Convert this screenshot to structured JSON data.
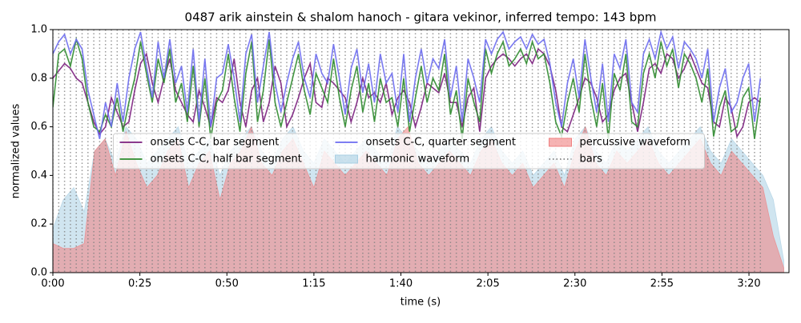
{
  "chart_data": {
    "type": "line",
    "title": "0487 arik ainstein & shalom hanoch - gitara vekinor, inferred tempo: 143 bpm",
    "xlabel": "time (s)",
    "ylabel": "normalized values",
    "xlim": [
      0,
      211.5
    ],
    "ylim": [
      0,
      1
    ],
    "xticks": [
      {
        "value": 0,
        "label": "0:00"
      },
      {
        "value": 25,
        "label": "0:25"
      },
      {
        "value": 50,
        "label": "0:50"
      },
      {
        "value": 75,
        "label": "1:15"
      },
      {
        "value": 100,
        "label": "1:40"
      },
      {
        "value": 125,
        "label": "2:05"
      },
      {
        "value": 150,
        "label": "2:30"
      },
      {
        "value": 175,
        "label": "2:55"
      },
      {
        "value": 200,
        "label": "3:20"
      }
    ],
    "yticks": [
      {
        "value": 0,
        "label": "0.0"
      },
      {
        "value": 0.2,
        "label": "0.2"
      },
      {
        "value": 0.4,
        "label": "0.4"
      },
      {
        "value": 0.6,
        "label": "0.6"
      },
      {
        "value": 0.8,
        "label": "0.8"
      },
      {
        "value": 1,
        "label": "1.0"
      }
    ],
    "legend": "center",
    "x": [
      0,
      1.68,
      3.36,
      5.04,
      6.72,
      8.4,
      10.08,
      11.76,
      13.44,
      15.12,
      16.8,
      18.48,
      20.16,
      21.84,
      23.52,
      25.2,
      26.88,
      28.56,
      30.24,
      31.92,
      33.6,
      35.28,
      36.96,
      38.64,
      40.32,
      42,
      43.68,
      45.36,
      47.04,
      48.72,
      50.4,
      52.08,
      53.76,
      55.44,
      57.12,
      58.8,
      60.48,
      62.16,
      63.84,
      65.52,
      67.2,
      68.88,
      70.56,
      72.24,
      73.92,
      75.6,
      77.28,
      78.96,
      80.64,
      82.32,
      84,
      85.68,
      87.36,
      89.04,
      90.72,
      92.4,
      94.08,
      95.76,
      97.44,
      99.12,
      100.8,
      102.48,
      104.16,
      105.84,
      107.52,
      109.2,
      110.88,
      112.56,
      114.24,
      115.92,
      117.6,
      119.28,
      120.96,
      122.64,
      124.32,
      126,
      127.68,
      129.36,
      131.04,
      132.72,
      134.4,
      136.08,
      137.76,
      139.44,
      141.12,
      142.8,
      144.48,
      146.16,
      147.84,
      149.52,
      151.2,
      152.88,
      154.56,
      156.24,
      157.92,
      159.6,
      161.28,
      162.96,
      164.64,
      166.32,
      168,
      169.68,
      171.36,
      173.04,
      174.72,
      176.4,
      178.08,
      179.76,
      181.44,
      183.12,
      184.8,
      186.48,
      188.16,
      189.84,
      191.52,
      193.2,
      194.88,
      196.56,
      198.24,
      199.92,
      201.6,
      203.28
    ],
    "series": [
      {
        "name": "onsets C-C, bar segment",
        "color": "#7b1f7e",
        "style": "line",
        "values": [
          0.8,
          0.83,
          0.86,
          0.84,
          0.8,
          0.78,
          0.7,
          0.62,
          0.57,
          0.6,
          0.72,
          0.66,
          0.6,
          0.62,
          0.75,
          0.86,
          0.9,
          0.78,
          0.7,
          0.8,
          0.88,
          0.75,
          0.7,
          0.65,
          0.62,
          0.75,
          0.68,
          0.6,
          0.72,
          0.7,
          0.75,
          0.88,
          0.7,
          0.6,
          0.75,
          0.8,
          0.62,
          0.7,
          0.85,
          0.78,
          0.6,
          0.65,
          0.72,
          0.8,
          0.86,
          0.7,
          0.68,
          0.8,
          0.78,
          0.75,
          0.72,
          0.62,
          0.7,
          0.8,
          0.72,
          0.74,
          0.7,
          0.78,
          0.65,
          0.72,
          0.75,
          0.7,
          0.6,
          0.68,
          0.78,
          0.76,
          0.74,
          0.82,
          0.7,
          0.7,
          0.6,
          0.72,
          0.76,
          0.58,
          0.8,
          0.85,
          0.88,
          0.9,
          0.88,
          0.85,
          0.88,
          0.9,
          0.86,
          0.92,
          0.9,
          0.85,
          0.75,
          0.6,
          0.58,
          0.65,
          0.72,
          0.8,
          0.78,
          0.72,
          0.62,
          0.65,
          0.75,
          0.8,
          0.82,
          0.7,
          0.58,
          0.7,
          0.84,
          0.86,
          0.82,
          0.9,
          0.88,
          0.8,
          0.84,
          0.9,
          0.84,
          0.78,
          0.76,
          0.62,
          0.6,
          0.72,
          0.68,
          0.56,
          0.6,
          0.7,
          0.72,
          0.7
        ]
      },
      {
        "name": "onsets C-C, half bar segment",
        "color": "#2e8b2e",
        "style": "line",
        "values": [
          0.68,
          0.9,
          0.92,
          0.85,
          0.96,
          0.88,
          0.7,
          0.6,
          0.58,
          0.65,
          0.6,
          0.72,
          0.58,
          0.7,
          0.8,
          0.95,
          0.82,
          0.7,
          0.88,
          0.78,
          0.92,
          0.7,
          0.78,
          0.62,
          0.85,
          0.6,
          0.8,
          0.55,
          0.7,
          0.75,
          0.9,
          0.72,
          0.58,
          0.82,
          0.95,
          0.62,
          0.75,
          0.96,
          0.7,
          0.6,
          0.7,
          0.8,
          0.9,
          0.75,
          0.65,
          0.82,
          0.76,
          0.7,
          0.88,
          0.72,
          0.6,
          0.75,
          0.85,
          0.66,
          0.78,
          0.62,
          0.8,
          0.7,
          0.72,
          0.6,
          0.8,
          0.58,
          0.72,
          0.85,
          0.7,
          0.8,
          0.75,
          0.9,
          0.65,
          0.75,
          0.55,
          0.8,
          0.7,
          0.62,
          0.92,
          0.82,
          0.9,
          0.95,
          0.85,
          0.88,
          0.92,
          0.86,
          0.95,
          0.88,
          0.9,
          0.78,
          0.62,
          0.56,
          0.7,
          0.8,
          0.66,
          0.9,
          0.72,
          0.6,
          0.78,
          0.55,
          0.82,
          0.75,
          0.9,
          0.62,
          0.6,
          0.82,
          0.9,
          0.8,
          0.95,
          0.85,
          0.92,
          0.76,
          0.9,
          0.86,
          0.8,
          0.7,
          0.84,
          0.56,
          0.68,
          0.75,
          0.58,
          0.6,
          0.72,
          0.76,
          0.55,
          0.72
        ]
      },
      {
        "name": "onsets C-C, quarter segment",
        "color": "#6b6bf0",
        "style": "line",
        "values": [
          0.9,
          0.95,
          0.98,
          0.9,
          0.96,
          0.92,
          0.75,
          0.65,
          0.55,
          0.7,
          0.6,
          0.78,
          0.62,
          0.8,
          0.92,
          0.99,
          0.85,
          0.72,
          0.95,
          0.8,
          0.96,
          0.78,
          0.85,
          0.66,
          0.92,
          0.62,
          0.88,
          0.6,
          0.8,
          0.82,
          0.94,
          0.8,
          0.62,
          0.9,
          0.98,
          0.7,
          0.85,
          0.99,
          0.78,
          0.66,
          0.78,
          0.88,
          0.95,
          0.8,
          0.72,
          0.9,
          0.82,
          0.78,
          0.94,
          0.8,
          0.65,
          0.84,
          0.92,
          0.74,
          0.86,
          0.7,
          0.9,
          0.78,
          0.82,
          0.66,
          0.9,
          0.62,
          0.8,
          0.92,
          0.78,
          0.88,
          0.84,
          0.96,
          0.72,
          0.85,
          0.62,
          0.88,
          0.8,
          0.7,
          0.96,
          0.9,
          0.96,
          0.99,
          0.92,
          0.95,
          0.97,
          0.92,
          0.98,
          0.94,
          0.96,
          0.86,
          0.7,
          0.6,
          0.78,
          0.88,
          0.72,
          0.96,
          0.8,
          0.66,
          0.86,
          0.62,
          0.9,
          0.84,
          0.96,
          0.7,
          0.66,
          0.9,
          0.96,
          0.88,
          0.99,
          0.92,
          0.97,
          0.84,
          0.95,
          0.92,
          0.88,
          0.8,
          0.92,
          0.62,
          0.76,
          0.84,
          0.66,
          0.7,
          0.8,
          0.86,
          0.62,
          0.8
        ]
      },
      {
        "name": "harmonic waveform",
        "color": "#a9cfe3",
        "style": "area",
        "x": [
          0,
          3,
          6,
          9,
          12,
          15,
          18,
          21,
          24,
          27,
          30,
          33,
          36,
          39,
          42,
          45,
          48,
          51,
          54,
          57,
          60,
          63,
          66,
          69,
          72,
          75,
          78,
          81,
          84,
          87,
          90,
          93,
          96,
          99,
          102,
          105,
          108,
          111,
          114,
          117,
          120,
          123,
          126,
          129,
          132,
          135,
          138,
          141,
          144,
          147,
          150,
          153,
          156,
          159,
          162,
          165,
          168,
          171,
          174,
          177,
          180,
          183,
          186,
          189,
          192,
          195,
          198,
          201,
          204,
          207,
          210
        ],
        "values": [
          0.18,
          0.3,
          0.35,
          0.25,
          0.5,
          0.55,
          0.45,
          0.6,
          0.55,
          0.45,
          0.5,
          0.55,
          0.6,
          0.45,
          0.5,
          0.55,
          0.4,
          0.5,
          0.55,
          0.6,
          0.5,
          0.45,
          0.55,
          0.6,
          0.5,
          0.45,
          0.55,
          0.5,
          0.45,
          0.5,
          0.55,
          0.5,
          0.45,
          0.6,
          0.55,
          0.5,
          0.45,
          0.5,
          0.55,
          0.5,
          0.45,
          0.55,
          0.6,
          0.5,
          0.45,
          0.5,
          0.4,
          0.45,
          0.5,
          0.4,
          0.55,
          0.6,
          0.5,
          0.45,
          0.55,
          0.5,
          0.55,
          0.6,
          0.5,
          0.45,
          0.5,
          0.55,
          0.6,
          0.5,
          0.45,
          0.55,
          0.5,
          0.45,
          0.4,
          0.3,
          0.05
        ]
      },
      {
        "name": "percussive waveform",
        "color": "#f08080",
        "style": "area",
        "x": [
          0,
          3,
          6,
          9,
          12,
          15,
          18,
          21,
          24,
          27,
          30,
          33,
          36,
          39,
          42,
          45,
          48,
          51,
          54,
          57,
          60,
          63,
          66,
          69,
          72,
          75,
          78,
          81,
          84,
          87,
          90,
          93,
          96,
          99,
          102,
          105,
          108,
          111,
          114,
          117,
          120,
          123,
          126,
          129,
          132,
          135,
          138,
          141,
          144,
          147,
          150,
          153,
          156,
          159,
          162,
          165,
          168,
          171,
          174,
          177,
          180,
          183,
          186,
          189,
          192,
          195,
          198,
          201,
          204,
          207,
          210
        ],
        "values": [
          0.12,
          0.1,
          0.1,
          0.12,
          0.5,
          0.55,
          0.4,
          0.58,
          0.45,
          0.35,
          0.4,
          0.5,
          0.55,
          0.35,
          0.45,
          0.5,
          0.3,
          0.45,
          0.5,
          0.6,
          0.45,
          0.4,
          0.5,
          0.55,
          0.45,
          0.35,
          0.5,
          0.45,
          0.4,
          0.45,
          0.5,
          0.45,
          0.4,
          0.55,
          0.6,
          0.45,
          0.4,
          0.45,
          0.5,
          0.45,
          0.4,
          0.5,
          0.55,
          0.45,
          0.4,
          0.45,
          0.35,
          0.4,
          0.45,
          0.35,
          0.5,
          0.6,
          0.45,
          0.4,
          0.5,
          0.45,
          0.5,
          0.55,
          0.45,
          0.4,
          0.45,
          0.5,
          0.55,
          0.45,
          0.4,
          0.5,
          0.45,
          0.4,
          0.35,
          0.15,
          0.02
        ]
      },
      {
        "name": "bars",
        "color": "#808080",
        "style": "vlines"
      }
    ]
  }
}
